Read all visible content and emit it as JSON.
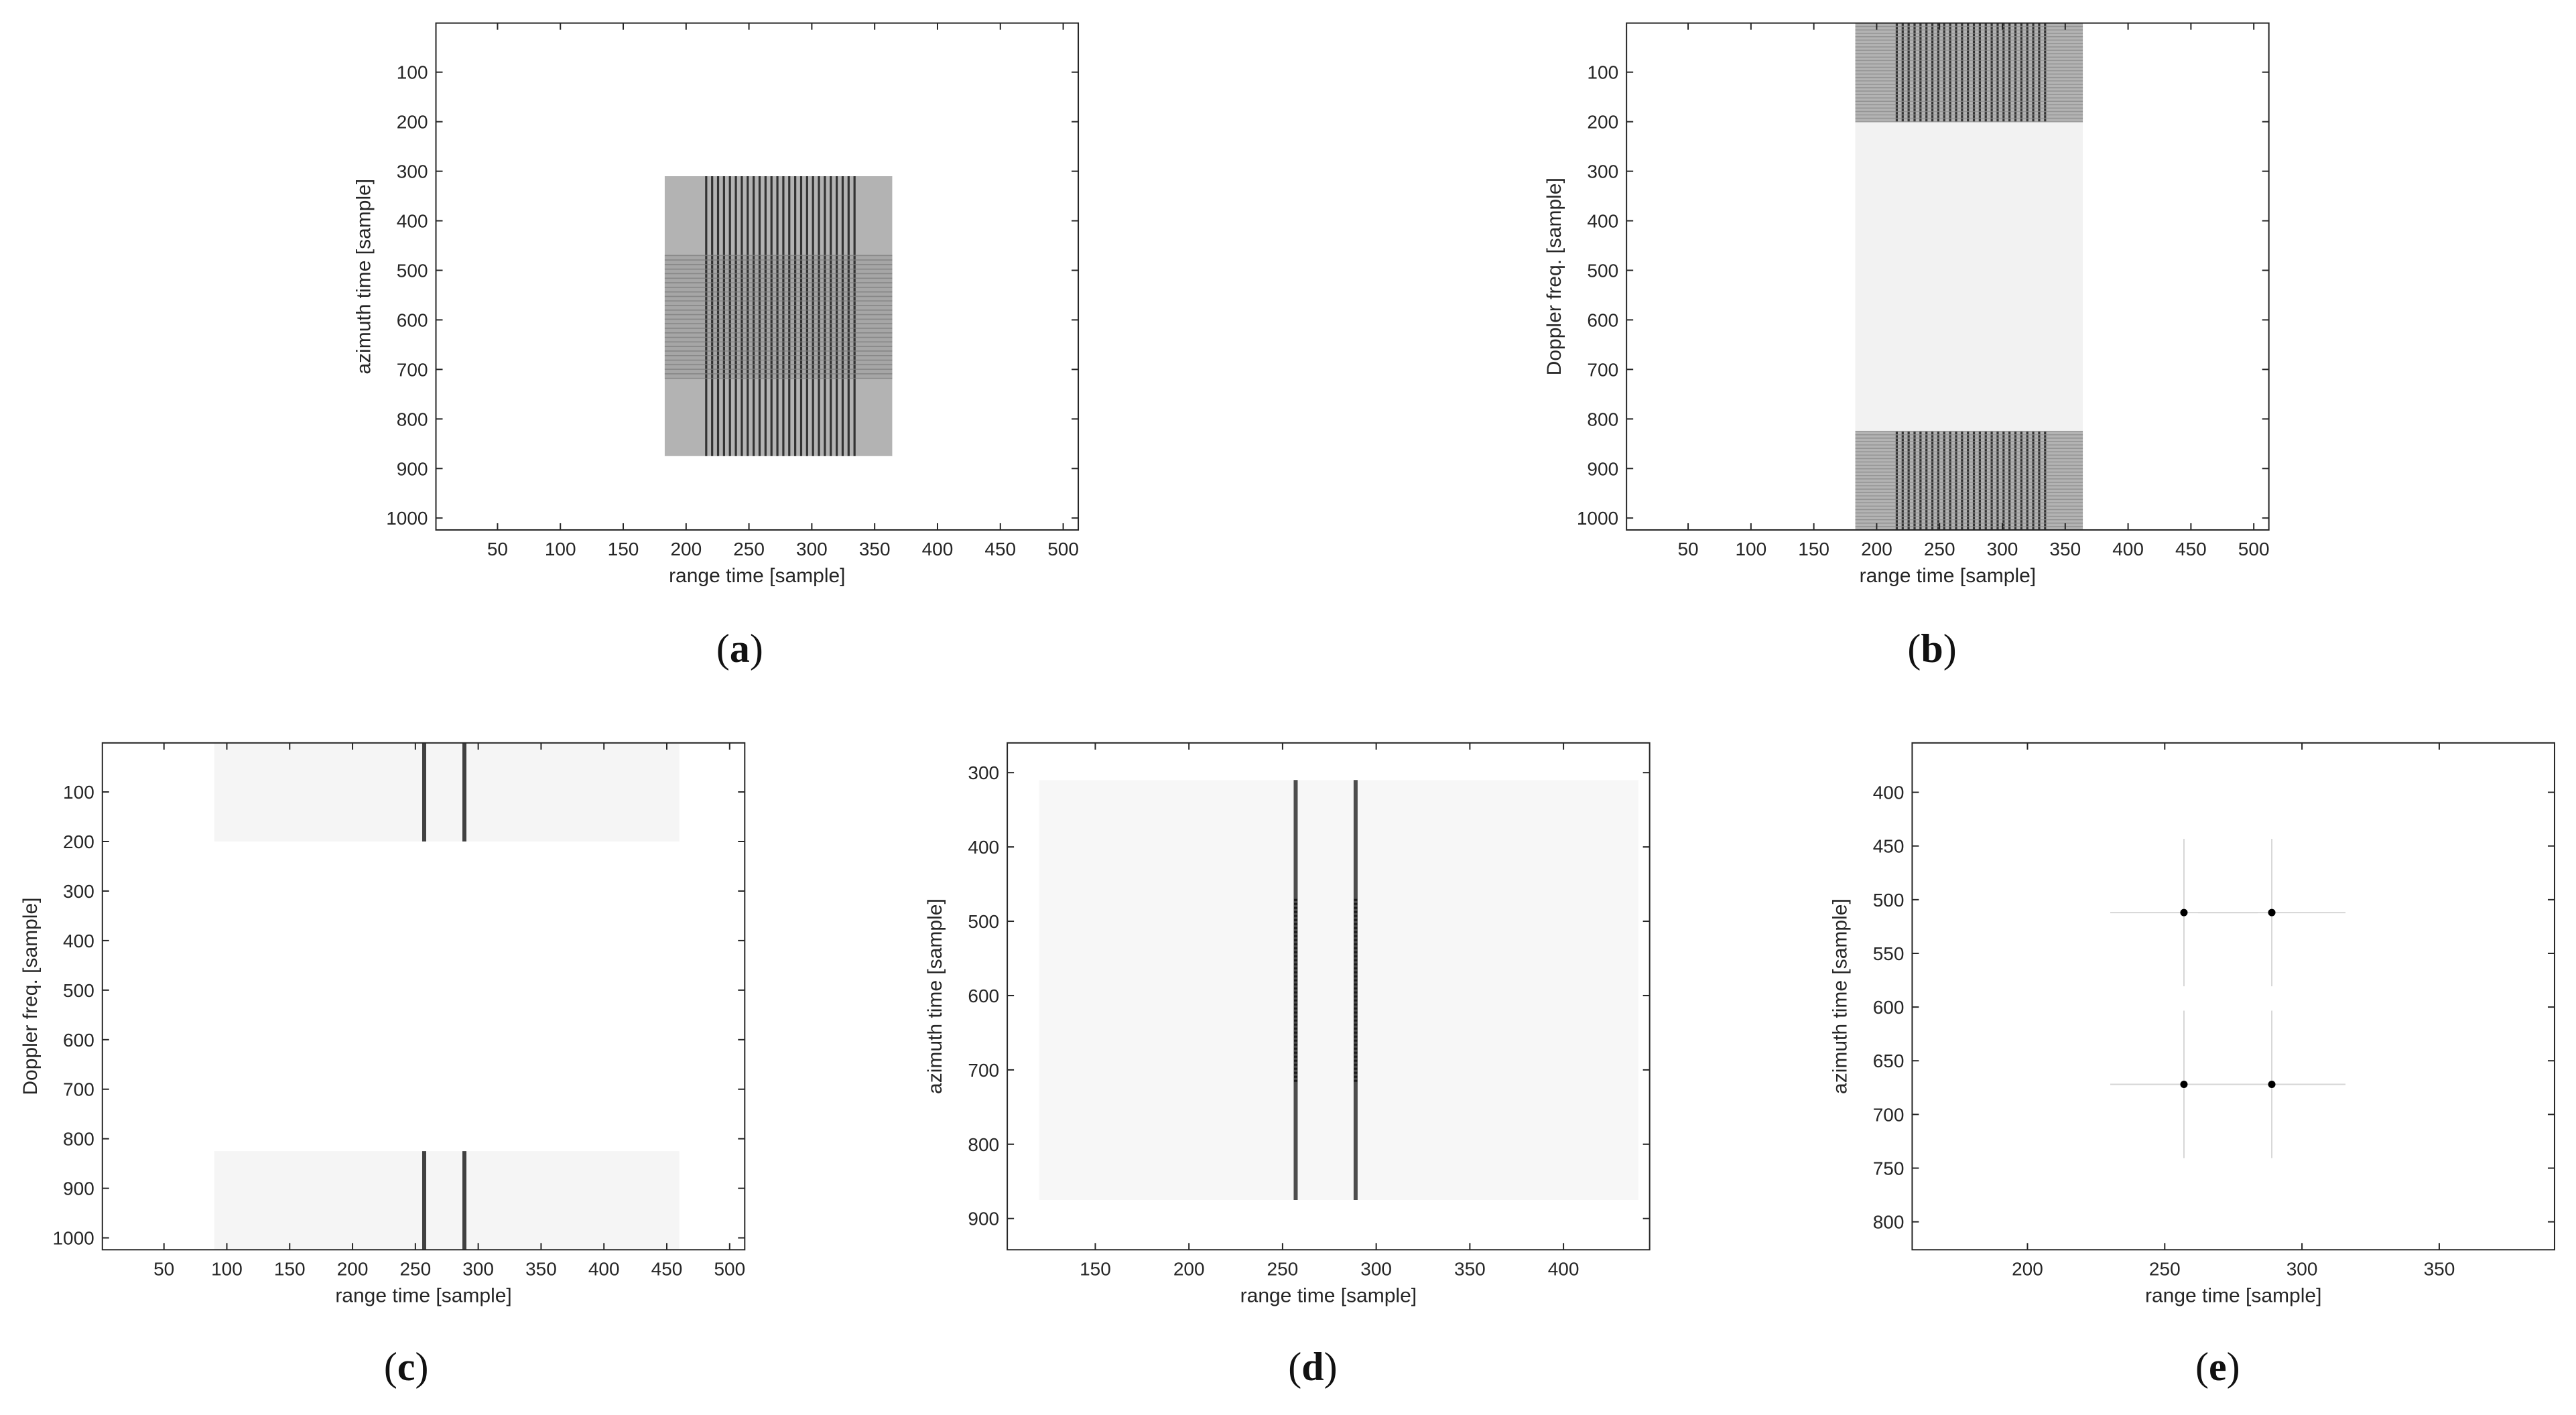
{
  "chart_data": [
    {
      "panel": "a",
      "type": "heatmap",
      "caption": "(a)",
      "xlabel": "range time [sample]",
      "ylabel": "azimuth time [sample]",
      "xticks": [
        50,
        100,
        150,
        200,
        250,
        300,
        350,
        400,
        450,
        500
      ],
      "yticks": [
        100,
        200,
        300,
        400,
        500,
        600,
        700,
        800,
        900,
        1000
      ],
      "xlim": [
        1,
        512
      ],
      "ylim": [
        1,
        1024
      ],
      "y_reversed": true,
      "colormap": "gray-inverted",
      "features": [
        {
          "kind": "rect",
          "x": [
            183,
            364
          ],
          "y": [
            310,
            875
          ],
          "level": 0.3
        },
        {
          "kind": "rect",
          "x": [
            183,
            364
          ],
          "y": [
            470,
            718
          ],
          "level": 0.35
        },
        {
          "kind": "vstripes",
          "x": [
            216,
            334
          ],
          "y": [
            310,
            875
          ],
          "count": 26,
          "level": 0.8
        },
        {
          "kind": "hstripes",
          "x": [
            183,
            364
          ],
          "y": [
            470,
            718
          ],
          "count": 28,
          "level": 0.5
        }
      ]
    },
    {
      "panel": "b",
      "type": "heatmap",
      "caption": "(b)",
      "xlabel": "range time [sample]",
      "ylabel": "Doppler freq. [sample]",
      "xticks": [
        50,
        100,
        150,
        200,
        250,
        300,
        350,
        400,
        450,
        500
      ],
      "yticks": [
        100,
        200,
        300,
        400,
        500,
        600,
        700,
        800,
        900,
        1000
      ],
      "xlim": [
        1,
        512
      ],
      "ylim": [
        1,
        1024
      ],
      "y_reversed": true,
      "colormap": "gray-inverted",
      "features": [
        {
          "kind": "rect",
          "x": [
            183,
            364
          ],
          "y": [
            1,
            200
          ],
          "level": 0.3
        },
        {
          "kind": "rect",
          "x": [
            183,
            364
          ],
          "y": [
            825,
            1024
          ],
          "level": 0.3
        },
        {
          "kind": "rect",
          "x": [
            183,
            364
          ],
          "y": [
            200,
            825
          ],
          "level": 0.05
        },
        {
          "kind": "vstripes",
          "x": [
            216,
            334
          ],
          "y": [
            1,
            200
          ],
          "count": 26,
          "level": 0.8
        },
        {
          "kind": "vstripes",
          "x": [
            216,
            334
          ],
          "y": [
            825,
            1024
          ],
          "count": 26,
          "level": 0.8
        },
        {
          "kind": "hstripes",
          "x": [
            183,
            364
          ],
          "y": [
            1,
            200
          ],
          "count": 30,
          "level": 0.45
        },
        {
          "kind": "hstripes",
          "x": [
            183,
            364
          ],
          "y": [
            825,
            1024
          ],
          "count": 30,
          "level": 0.45
        }
      ]
    },
    {
      "panel": "c",
      "type": "heatmap",
      "caption": "(c)",
      "xlabel": "range time [sample]",
      "ylabel": "Doppler freq. [sample]",
      "xticks": [
        50,
        100,
        150,
        200,
        250,
        300,
        350,
        400,
        450,
        500
      ],
      "yticks": [
        100,
        200,
        300,
        400,
        500,
        600,
        700,
        800,
        900,
        1000
      ],
      "xlim": [
        1,
        512
      ],
      "ylim": [
        1,
        1024
      ],
      "y_reversed": true,
      "colormap": "gray-inverted",
      "features": [
        {
          "kind": "rect",
          "x": [
            90,
            460
          ],
          "y": [
            1,
            200
          ],
          "level": 0.04
        },
        {
          "kind": "rect",
          "x": [
            90,
            460
          ],
          "y": [
            825,
            1024
          ],
          "level": 0.04
        },
        {
          "kind": "line",
          "x": 257,
          "y": [
            1,
            200
          ],
          "level": 0.75
        },
        {
          "kind": "line",
          "x": 289,
          "y": [
            1,
            200
          ],
          "level": 0.75
        },
        {
          "kind": "line",
          "x": 257,
          "y": [
            825,
            1024
          ],
          "level": 0.75
        },
        {
          "kind": "line",
          "x": 289,
          "y": [
            825,
            1024
          ],
          "level": 0.75
        }
      ]
    },
    {
      "panel": "d",
      "type": "heatmap",
      "caption": "(d)",
      "xlabel": "range time [sample]",
      "ylabel": "azimuth time [sample]",
      "xticks": [
        150,
        200,
        250,
        300,
        350,
        400
      ],
      "yticks": [
        300,
        400,
        500,
        600,
        700,
        800,
        900
      ],
      "xlim": [
        103,
        446
      ],
      "ylim": [
        260,
        942
      ],
      "y_reversed": true,
      "colormap": "gray-inverted",
      "features": [
        {
          "kind": "rect",
          "x": [
            120,
            440
          ],
          "y": [
            310,
            875
          ],
          "level": 0.03
        },
        {
          "kind": "line",
          "x": 257,
          "y": [
            310,
            875
          ],
          "level": 0.7
        },
        {
          "kind": "line",
          "x": 289,
          "y": [
            310,
            875
          ],
          "level": 0.7
        },
        {
          "kind": "dotted",
          "x": 257,
          "y": [
            470,
            718
          ],
          "level": 0.9
        },
        {
          "kind": "dotted",
          "x": 289,
          "y": [
            470,
            718
          ],
          "level": 0.9
        }
      ]
    },
    {
      "panel": "e",
      "type": "heatmap",
      "caption": "(e)",
      "xlabel": "range time [sample]",
      "ylabel": "azimuth time [sample]",
      "xticks": [
        200,
        250,
        300,
        350
      ],
      "yticks": [
        400,
        450,
        500,
        550,
        600,
        650,
        700,
        750,
        800
      ],
      "xlim": [
        158,
        392
      ],
      "ylim": [
        354,
        826
      ],
      "y_reversed": true,
      "colormap": "gray-inverted",
      "features": [
        {
          "kind": "point",
          "x": 257,
          "y": 512,
          "level": 1
        },
        {
          "kind": "point",
          "x": 289,
          "y": 512,
          "level": 1
        },
        {
          "kind": "point",
          "x": 257,
          "y": 672,
          "level": 1
        },
        {
          "kind": "point",
          "x": 289,
          "y": 672,
          "level": 1
        }
      ]
    }
  ]
}
